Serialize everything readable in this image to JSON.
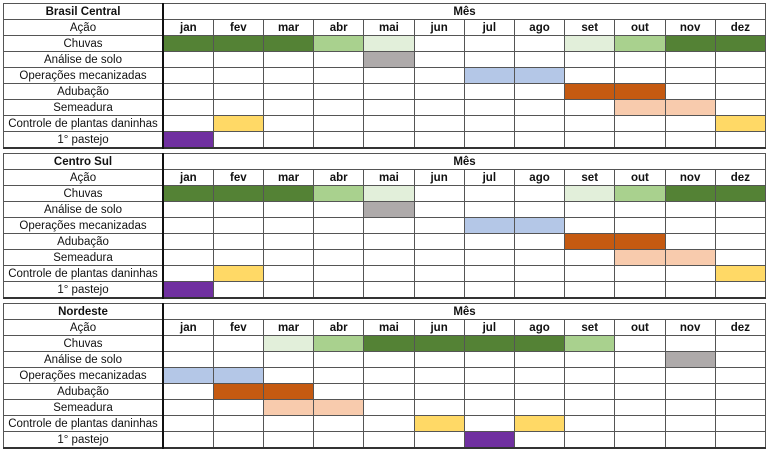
{
  "header_label": "Mês",
  "action_label": "Ação",
  "months": [
    "jan",
    "fev",
    "mar",
    "abr",
    "mai",
    "jun",
    "jul",
    "ago",
    "set",
    "out",
    "nov",
    "dez"
  ],
  "palette": {
    "dg": "#548235",
    "lg": "#a9d18e",
    "vlg": "#e2efda",
    "gray": "#aeaaaa",
    "blue": "#b4c7e7",
    "orange": "#c55a11",
    "peach": "#f8cbad",
    "yellow": "#ffd966",
    "purple": "#7030a0"
  },
  "tables": [
    {
      "region": "Brasil Central",
      "rows": [
        {
          "action": "Chuvas",
          "cells": [
            "dg",
            "dg",
            "dg",
            "lg",
            "vlg",
            "",
            "",
            "",
            "vlg",
            "lg",
            "dg",
            "dg"
          ]
        },
        {
          "action": "Análise de solo",
          "cells": [
            "",
            "",
            "",
            "",
            "gray",
            "",
            "",
            "",
            "",
            "",
            "",
            ""
          ]
        },
        {
          "action": "Operações mecanizadas",
          "cells": [
            "",
            "",
            "",
            "",
            "",
            "",
            "blue",
            "blue",
            "",
            "",
            "",
            ""
          ]
        },
        {
          "action": "Adubação",
          "cells": [
            "",
            "",
            "",
            "",
            "",
            "",
            "",
            "",
            "orange",
            "orange",
            "",
            ""
          ]
        },
        {
          "action": "Semeadura",
          "cells": [
            "",
            "",
            "",
            "",
            "",
            "",
            "",
            "",
            "",
            "peach",
            "peach",
            ""
          ]
        },
        {
          "action": "Controle de plantas daninhas",
          "cells": [
            "",
            "yellow",
            "",
            "",
            "",
            "",
            "",
            "",
            "",
            "",
            "",
            "yellow"
          ]
        },
        {
          "action": "1° pastejo",
          "cells": [
            "purple",
            "",
            "",
            "",
            "",
            "",
            "",
            "",
            "",
            "",
            "",
            ""
          ]
        }
      ]
    },
    {
      "region": "Centro Sul",
      "rows": [
        {
          "action": "Chuvas",
          "cells": [
            "dg",
            "dg",
            "dg",
            "lg",
            "vlg",
            "",
            "",
            "",
            "vlg",
            "lg",
            "dg",
            "dg"
          ]
        },
        {
          "action": "Análise de solo",
          "cells": [
            "",
            "",
            "",
            "",
            "gray",
            "",
            "",
            "",
            "",
            "",
            "",
            ""
          ]
        },
        {
          "action": "Operações mecanizadas",
          "cells": [
            "",
            "",
            "",
            "",
            "",
            "",
            "blue",
            "blue",
            "",
            "",
            "",
            ""
          ]
        },
        {
          "action": "Adubação",
          "cells": [
            "",
            "",
            "",
            "",
            "",
            "",
            "",
            "",
            "orange",
            "orange",
            "",
            ""
          ]
        },
        {
          "action": "Semeadura",
          "cells": [
            "",
            "",
            "",
            "",
            "",
            "",
            "",
            "",
            "",
            "peach",
            "peach",
            ""
          ]
        },
        {
          "action": "Controle de plantas daninhas",
          "cells": [
            "",
            "yellow",
            "",
            "",
            "",
            "",
            "",
            "",
            "",
            "",
            "",
            "yellow"
          ]
        },
        {
          "action": "1° pastejo",
          "cells": [
            "purple",
            "",
            "",
            "",
            "",
            "",
            "",
            "",
            "",
            "",
            "",
            ""
          ]
        }
      ]
    },
    {
      "region": "Nordeste",
      "rows": [
        {
          "action": "Chuvas",
          "cells": [
            "",
            "",
            "vlg",
            "lg",
            "dg",
            "dg",
            "dg",
            "dg",
            "lg",
            "",
            "",
            ""
          ]
        },
        {
          "action": "Análise de solo",
          "cells": [
            "",
            "",
            "",
            "",
            "",
            "",
            "",
            "",
            "",
            "",
            "gray",
            ""
          ]
        },
        {
          "action": "Operações mecanizadas",
          "cells": [
            "blue",
            "blue",
            "",
            "",
            "",
            "",
            "",
            "",
            "",
            "",
            "",
            ""
          ]
        },
        {
          "action": "Adubação",
          "cells": [
            "",
            "orange",
            "orange",
            "",
            "",
            "",
            "",
            "",
            "",
            "",
            "",
            ""
          ]
        },
        {
          "action": "Semeadura",
          "cells": [
            "",
            "",
            "peach",
            "peach",
            "",
            "",
            "",
            "",
            "",
            "",
            "",
            ""
          ]
        },
        {
          "action": "Controle de plantas daninhas",
          "cells": [
            "",
            "",
            "",
            "",
            "",
            "yellow",
            "",
            "yellow",
            "",
            "",
            "",
            ""
          ]
        },
        {
          "action": "1° pastejo",
          "cells": [
            "",
            "",
            "",
            "",
            "",
            "",
            "purple",
            "",
            "",
            "",
            "",
            ""
          ]
        }
      ]
    }
  ]
}
